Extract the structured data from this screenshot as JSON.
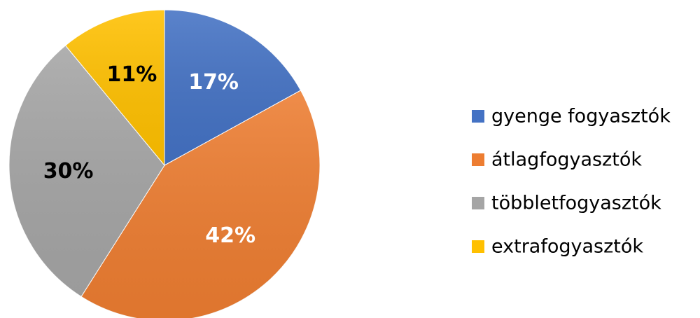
{
  "chart_data": {
    "type": "pie",
    "slices": [
      {
        "name": "gyenge fogyasztók",
        "value": 17,
        "label": "17%",
        "color": "#4472C4",
        "label_color": "#ffffff"
      },
      {
        "name": "átlagfogyasztók",
        "value": 42,
        "label": "42%",
        "color": "#ED7D31",
        "label_color": "#ffffff"
      },
      {
        "name": "többletfogyasztók",
        "value": 30,
        "label": "30%",
        "color": "#A5A5A5",
        "label_color": "#000000"
      },
      {
        "name": "extrafogyasztók",
        "value": 11,
        "label": "11%",
        "color": "#FFC000",
        "label_color": "#000000"
      }
    ],
    "start": "top",
    "direction": "clockwise",
    "legend": "right"
  }
}
